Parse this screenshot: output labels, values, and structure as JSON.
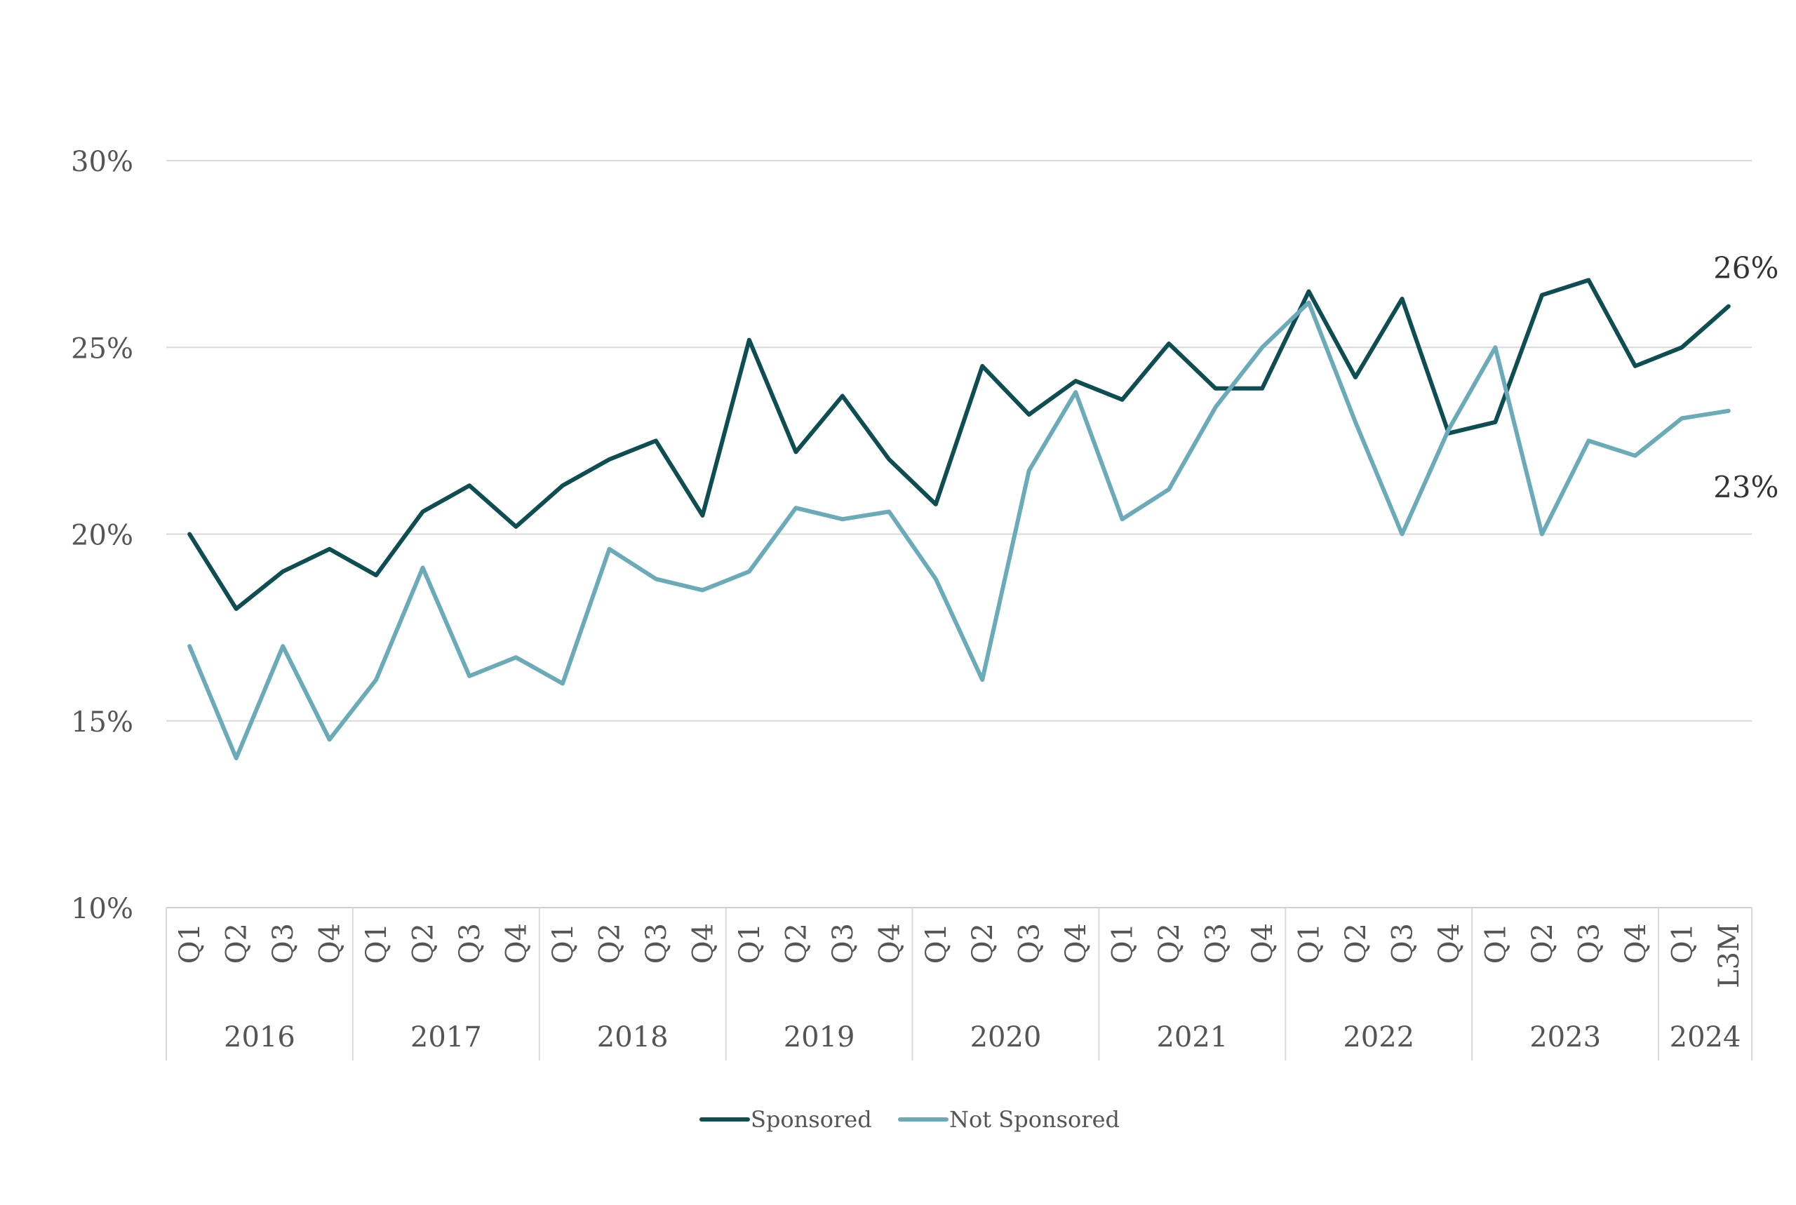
{
  "chart_data": {
    "type": "line",
    "title": "",
    "xlabel": "",
    "ylabel": "",
    "ylim": [
      10,
      30
    ],
    "yticks": [
      10,
      15,
      20,
      25,
      30
    ],
    "ytick_labels": [
      "10%",
      "15%",
      "20%",
      "25%",
      "30%"
    ],
    "grid": true,
    "legend_position": "bottom",
    "categories": [
      "Q1",
      "Q2",
      "Q3",
      "Q4",
      "Q1",
      "Q2",
      "Q3",
      "Q4",
      "Q1",
      "Q2",
      "Q3",
      "Q4",
      "Q1",
      "Q2",
      "Q3",
      "Q4",
      "Q1",
      "Q2",
      "Q3",
      "Q4",
      "Q1",
      "Q2",
      "Q3",
      "Q4",
      "Q1",
      "Q2",
      "Q3",
      "Q4",
      "Q1",
      "Q2",
      "Q3",
      "Q4",
      "Q1",
      "L3M"
    ],
    "year_groups": [
      {
        "label": "2016",
        "count": 4
      },
      {
        "label": "2017",
        "count": 4
      },
      {
        "label": "2018",
        "count": 4
      },
      {
        "label": "2019",
        "count": 4
      },
      {
        "label": "2020",
        "count": 4
      },
      {
        "label": "2021",
        "count": 4
      },
      {
        "label": "2022",
        "count": 4
      },
      {
        "label": "2023",
        "count": 4
      },
      {
        "label": "2024",
        "count": 2
      }
    ],
    "series": [
      {
        "name": "Sponsored",
        "color": "#0e4d52",
        "values": [
          20.0,
          18.0,
          19.0,
          19.6,
          18.9,
          20.6,
          21.3,
          20.2,
          21.3,
          22.0,
          22.5,
          20.5,
          25.2,
          22.2,
          23.7,
          22.0,
          20.8,
          24.5,
          23.2,
          24.1,
          23.6,
          25.1,
          23.9,
          23.9,
          26.5,
          24.2,
          26.3,
          22.7,
          23.0,
          26.4,
          26.8,
          24.5,
          25.0,
          26.1
        ],
        "end_label": "26%"
      },
      {
        "name": "Not Sponsored",
        "color": "#6aaab9",
        "values": [
          17.0,
          14.0,
          17.0,
          14.5,
          16.1,
          19.1,
          16.2,
          16.7,
          16.0,
          19.6,
          18.8,
          18.5,
          19.0,
          20.7,
          20.4,
          20.6,
          18.8,
          16.1,
          21.7,
          23.8,
          20.4,
          21.2,
          23.4,
          25.0,
          26.2,
          23.0,
          20.0,
          22.8,
          25.0,
          20.0,
          22.5,
          22.1,
          23.1,
          23.3
        ],
        "end_label": "23%"
      }
    ]
  }
}
